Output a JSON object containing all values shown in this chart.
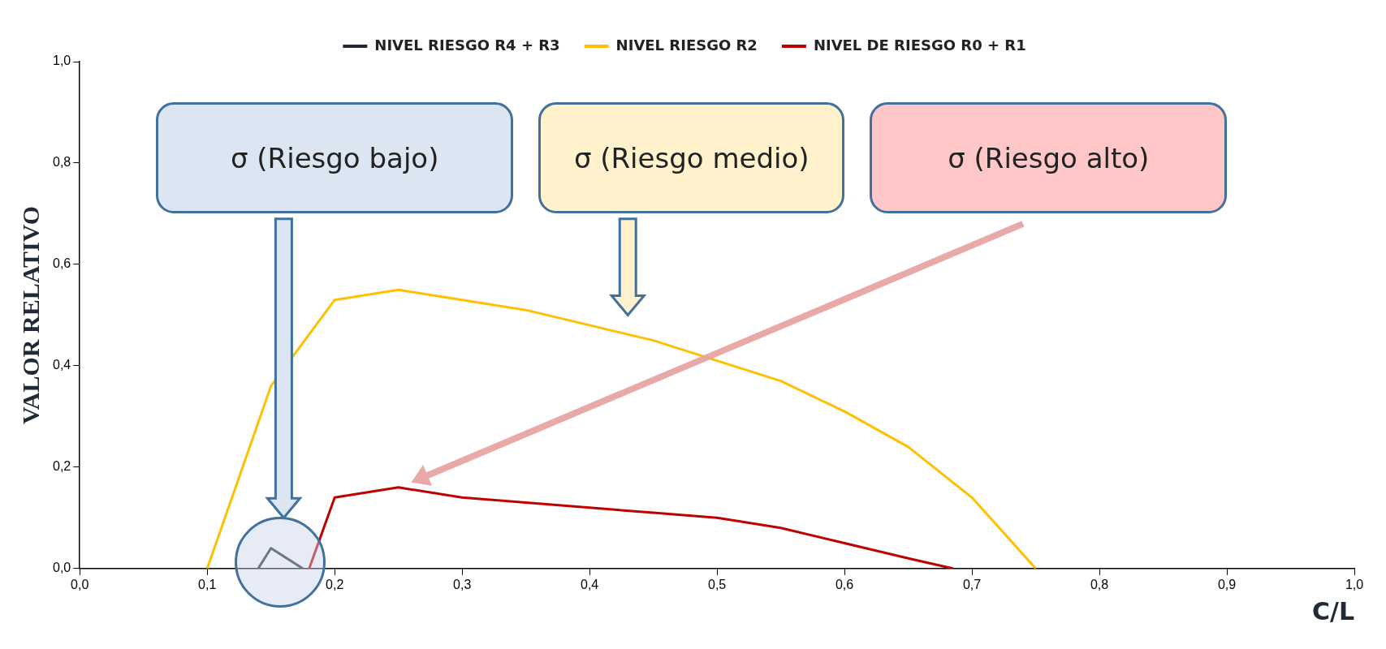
{
  "chart_data": {
    "type": "line",
    "xlabel": "C/L",
    "ylabel": "VALOR RELATIVO",
    "xlim": [
      0,
      1
    ],
    "xticks": [
      {
        "value": 0,
        "label": "0,0"
      },
      {
        "value": 0.1,
        "label": "0,1"
      },
      {
        "value": 0.2,
        "label": "0,2"
      },
      {
        "value": 0.3,
        "label": "0,3"
      },
      {
        "value": 0.4,
        "label": "0,4"
      },
      {
        "value": 0.5,
        "label": "0,5"
      },
      {
        "value": 0.6,
        "label": "0,6"
      },
      {
        "value": 0.7,
        "label": "0,7"
      },
      {
        "value": 0.8,
        "label": "0,8"
      },
      {
        "value": 0.9,
        "label": "0,9"
      },
      {
        "value": 1,
        "label": "1,0"
      }
    ],
    "ylim": [
      0,
      1
    ],
    "yticks": [
      {
        "value": 0,
        "label": "0,0"
      },
      {
        "value": 0.2,
        "label": "0,2"
      },
      {
        "value": 0.4,
        "label": "0,4"
      },
      {
        "value": 0.6,
        "label": "0,6"
      },
      {
        "value": 0.8,
        "label": "0,8"
      },
      {
        "value": 1,
        "label": "1,0"
      }
    ],
    "grid": false,
    "legend": "top",
    "marker": "none",
    "line_style": "solid",
    "annotations": [
      "σ (Riesgo bajo)",
      "σ (Riesgo medio)",
      "σ (Riesgo alto)"
    ],
    "series": [
      {
        "name": "NIVEL RIESGO R4 + R3",
        "color": "#1f2a36",
        "x": [
          0.14,
          0.15,
          0.175
        ],
        "values": [
          0,
          0.04,
          0
        ]
      },
      {
        "name": "NIVEL RIESGO R2",
        "color": "#ffc000",
        "x": [
          0.1,
          0.15,
          0.2,
          0.25,
          0.3,
          0.35,
          0.4,
          0.45,
          0.5,
          0.55,
          0.6,
          0.65,
          0.7,
          0.75
        ],
        "values": [
          0,
          0.36,
          0.53,
          0.55,
          0.53,
          0.51,
          0.48,
          0.45,
          0.41,
          0.37,
          0.31,
          0.24,
          0.14,
          0
        ]
      },
      {
        "name": "NIVEL DE RIESGO R0 + R1",
        "color": "#c00000",
        "x": [
          0.18,
          0.2,
          0.25,
          0.3,
          0.35,
          0.4,
          0.45,
          0.5,
          0.55,
          0.6,
          0.65,
          0.685
        ],
        "values": [
          0,
          0.14,
          0.16,
          0.14,
          0.13,
          0.12,
          0.11,
          0.1,
          0.08,
          0.05,
          0.02,
          0
        ]
      }
    ]
  }
}
